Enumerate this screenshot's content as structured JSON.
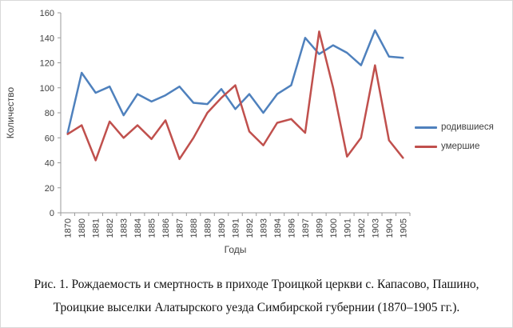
{
  "chart_data": {
    "type": "line",
    "categories": [
      "1870",
      "1880",
      "1881",
      "1882",
      "1883",
      "1884",
      "1885",
      "1886",
      "1887",
      "1888",
      "1889",
      "1890",
      "1891",
      "1892",
      "1893",
      "1894",
      "1896",
      "1897",
      "1899",
      "1900",
      "1901",
      "1902",
      "1903",
      "1904",
      "1905"
    ],
    "series": [
      {
        "name": "родившиеся",
        "color": "#4F81BD",
        "values": [
          64,
          112,
          96,
          101,
          78,
          95,
          89,
          94,
          101,
          88,
          87,
          99,
          83,
          95,
          80,
          95,
          102,
          140,
          127,
          134,
          128,
          118,
          146,
          125,
          124
        ]
      },
      {
        "name": "умершие",
        "color": "#C0504D",
        "values": [
          63,
          70,
          42,
          73,
          60,
          70,
          59,
          74,
          43,
          60,
          80,
          92,
          102,
          65,
          54,
          72,
          75,
          64,
          145,
          100,
          45,
          60,
          118,
          58,
          44
        ]
      }
    ],
    "title": "",
    "xlabel": "Годы",
    "ylabel": "Количество",
    "ylim": [
      0,
      160
    ],
    "yticks": [
      0,
      20,
      40,
      60,
      80,
      100,
      120,
      140,
      160
    ],
    "grid": false,
    "legend_position": "right"
  },
  "caption": {
    "line1": "Рис. 1. Рождаемость и смертность в приходе Троицкой церкви с. Капасово, Пашино,",
    "line2": "Троицкие выселки Алатырского уезда Симбирской губернии (1870–1905 гг.)."
  }
}
